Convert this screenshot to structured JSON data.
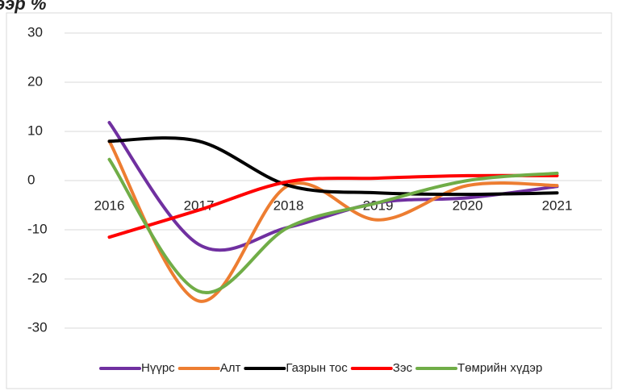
{
  "chart_data": {
    "type": "line",
    "title": "ээр %",
    "categories": [
      "2016",
      "2017",
      "2018",
      "2019",
      "2020",
      "2021"
    ],
    "series": [
      {
        "name": "Нүүрс",
        "color": "#7030a0",
        "values": [
          11.8,
          -13,
          -9.5,
          -4.5,
          -3.5,
          -1.2
        ]
      },
      {
        "name": "Алт",
        "color": "#ed7d31",
        "values": [
          8,
          -24.5,
          -1,
          -8,
          -1,
          -1
        ]
      },
      {
        "name": "Газрын тос",
        "color": "#000000",
        "values": [
          8,
          8,
          -1,
          -2.5,
          -2.8,
          -2.5
        ]
      },
      {
        "name": "Зэс",
        "color": "#ff0000",
        "values": [
          -11.5,
          -6,
          -0.2,
          0.5,
          1,
          1
        ]
      },
      {
        "name": "Төмрийн хүдэр",
        "color": "#70ad47",
        "values": [
          4.3,
          -22.5,
          -9.5,
          -4.5,
          0,
          1.5
        ]
      }
    ],
    "ylim": [
      -30,
      30
    ],
    "yticks": [
      -30,
      -20,
      -10,
      0,
      10,
      20,
      30
    ],
    "grid": true,
    "legend": "bottom"
  }
}
